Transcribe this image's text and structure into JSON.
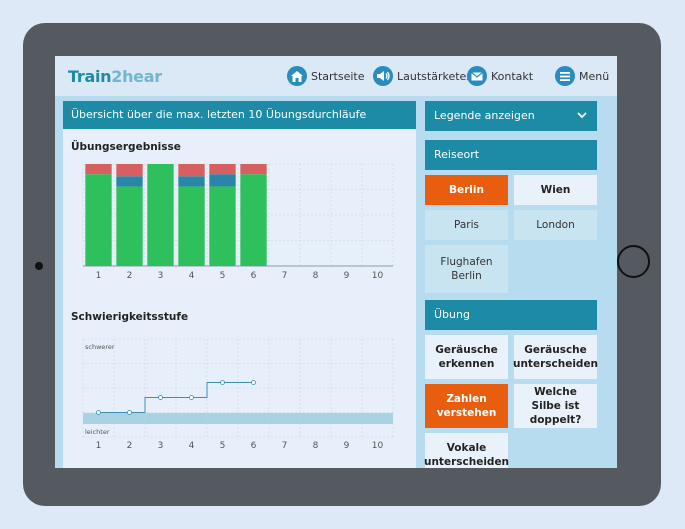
{
  "app": {
    "logo_part1": "Train",
    "logo_part2": "2hear"
  },
  "nav": {
    "home": "Startseite",
    "volume": "Lautstärketest",
    "contact": "Kontakt",
    "menu": "Menü"
  },
  "overview": {
    "header": "Übersicht über die max. letzten 10 Übungsdurchläufe"
  },
  "results": {
    "title": "Übungsergebnisse"
  },
  "difficulty": {
    "title": "Schwierigkeitsstufe",
    "top_label": "schwerer",
    "bottom_label": "leichter"
  },
  "legend": {
    "label": "Legende anzeigen"
  },
  "travel": {
    "header": "Reiseort",
    "options": [
      "Berlin",
      "Wien",
      "Paris",
      "London",
      "Flughafen Berlin"
    ],
    "selected": "Berlin"
  },
  "exercise": {
    "header": "Übung",
    "options": [
      "Geräusche erkennen",
      "Geräusche unterscheiden",
      "Zahlen verstehen",
      "Welche Silbe ist doppelt?",
      "Vokale unterscheiden"
    ],
    "selected": "Zahlen verstehen"
  },
  "colors": {
    "accent": "#1d8ba6",
    "active": "#e85e0e",
    "correct": "#2ec05c",
    "partial": "#2a86a8",
    "wrong": "#d75f60"
  },
  "chart_data": [
    {
      "type": "bar",
      "title": "Übungsergebnisse",
      "categories": [
        "1",
        "2",
        "3",
        "4",
        "5",
        "6",
        "7",
        "8",
        "9",
        "10"
      ],
      "series": [
        {
          "values": [
            90,
            78,
            100,
            78,
            78,
            90,
            null,
            null,
            null,
            null
          ]
        },
        {
          "values": [
            0,
            10,
            0,
            10,
            12,
            0,
            null,
            null,
            null,
            null
          ]
        },
        {
          "values": [
            10,
            12,
            0,
            12,
            10,
            10,
            null,
            null,
            null,
            null
          ]
        }
      ],
      "ylim": [
        0,
        100
      ],
      "grid": true
    },
    {
      "type": "line",
      "title": "Schwierigkeitsstufe",
      "x": [
        "1",
        "2",
        "3",
        "4",
        "5",
        "6",
        "7",
        "8",
        "9",
        "10"
      ],
      "values": [
        1,
        1,
        2,
        2,
        3,
        3,
        null,
        null,
        null,
        null
      ],
      "ylim": [
        0,
        5
      ],
      "ytop_label": "schwerer",
      "ybottom_label": "leichter",
      "grid": true
    }
  ]
}
